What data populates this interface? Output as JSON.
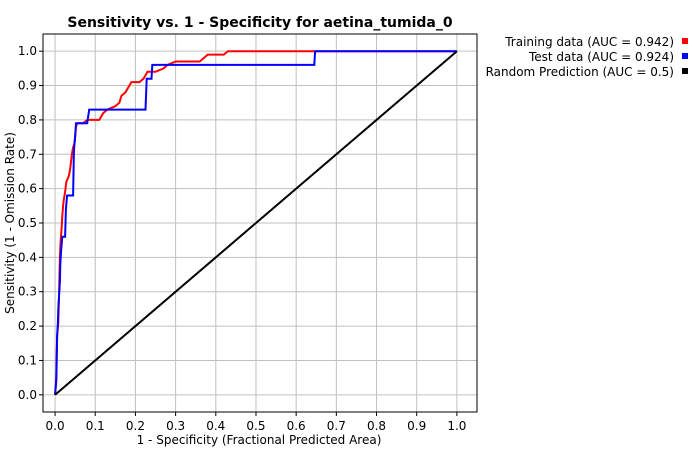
{
  "chart_data": {
    "type": "line",
    "title": "Sensitivity vs. 1 - Specificity for aetina_tumida_0",
    "xlabel": "1 - Specificity  (Fractional Predicted Area)",
    "ylabel": "Sensitivity  (1 - Omission Rate)",
    "xlim": [
      -0.03,
      1.05
    ],
    "ylim": [
      -0.05,
      1.05
    ],
    "xticks": [
      "0.0",
      "0.1",
      "0.2",
      "0.3",
      "0.4",
      "0.5",
      "0.6",
      "0.7",
      "0.8",
      "0.9",
      "1.0"
    ],
    "yticks": [
      "0.0",
      "0.1",
      "0.2",
      "0.3",
      "0.4",
      "0.5",
      "0.6",
      "0.7",
      "0.8",
      "0.9",
      "1.0"
    ],
    "grid": true,
    "legend_position": "top-right outside",
    "series": [
      {
        "name": "Training data (AUC = 0.942)",
        "color": "#ff0000",
        "points": [
          [
            0,
            0
          ],
          [
            0.003,
            0.04
          ],
          [
            0.005,
            0.17
          ],
          [
            0.008,
            0.21
          ],
          [
            0.01,
            0.3
          ],
          [
            0.012,
            0.4
          ],
          [
            0.014,
            0.45
          ],
          [
            0.016,
            0.48
          ],
          [
            0.018,
            0.52
          ],
          [
            0.02,
            0.55
          ],
          [
            0.022,
            0.57
          ],
          [
            0.025,
            0.59
          ],
          [
            0.028,
            0.62
          ],
          [
            0.032,
            0.63
          ],
          [
            0.035,
            0.64
          ],
          [
            0.038,
            0.66
          ],
          [
            0.042,
            0.7
          ],
          [
            0.045,
            0.72
          ],
          [
            0.048,
            0.73
          ],
          [
            0.05,
            0.75
          ],
          [
            0.052,
            0.78
          ],
          [
            0.055,
            0.79
          ],
          [
            0.07,
            0.79
          ],
          [
            0.08,
            0.8
          ],
          [
            0.09,
            0.8
          ],
          [
            0.11,
            0.8
          ],
          [
            0.12,
            0.82
          ],
          [
            0.13,
            0.83
          ],
          [
            0.15,
            0.84
          ],
          [
            0.16,
            0.85
          ],
          [
            0.165,
            0.87
          ],
          [
            0.175,
            0.88
          ],
          [
            0.18,
            0.89
          ],
          [
            0.19,
            0.91
          ],
          [
            0.21,
            0.91
          ],
          [
            0.22,
            0.92
          ],
          [
            0.23,
            0.94
          ],
          [
            0.25,
            0.94
          ],
          [
            0.27,
            0.95
          ],
          [
            0.28,
            0.96
          ],
          [
            0.3,
            0.97
          ],
          [
            0.36,
            0.97
          ],
          [
            0.37,
            0.98
          ],
          [
            0.38,
            0.99
          ],
          [
            0.42,
            0.99
          ],
          [
            0.43,
            1.0
          ],
          [
            1.0,
            1.0
          ]
        ]
      },
      {
        "name": "Test data (AUC = 0.924)",
        "color": "#0000ff",
        "points": [
          [
            0,
            0
          ],
          [
            0.003,
            0.05
          ],
          [
            0.005,
            0.17
          ],
          [
            0.007,
            0.21
          ],
          [
            0.008,
            0.25
          ],
          [
            0.01,
            0.29
          ],
          [
            0.011,
            0.31
          ],
          [
            0.012,
            0.33
          ],
          [
            0.013,
            0.38
          ],
          [
            0.015,
            0.42
          ],
          [
            0.018,
            0.46
          ],
          [
            0.025,
            0.46
          ],
          [
            0.027,
            0.54
          ],
          [
            0.03,
            0.58
          ],
          [
            0.045,
            0.58
          ],
          [
            0.047,
            0.71
          ],
          [
            0.05,
            0.75
          ],
          [
            0.052,
            0.79
          ],
          [
            0.08,
            0.79
          ],
          [
            0.085,
            0.83
          ],
          [
            0.225,
            0.83
          ],
          [
            0.228,
            0.92
          ],
          [
            0.24,
            0.92
          ],
          [
            0.242,
            0.96
          ],
          [
            0.645,
            0.96
          ],
          [
            0.647,
            1.0
          ],
          [
            1.0,
            1.0
          ]
        ]
      },
      {
        "name": "Random Prediction (AUC = 0.5)",
        "color": "#000000",
        "points": [
          [
            0,
            0
          ],
          [
            1,
            1
          ]
        ]
      }
    ]
  }
}
